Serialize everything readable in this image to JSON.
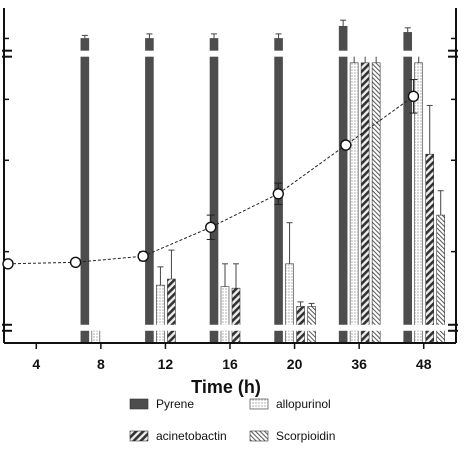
{
  "chart_data": {
    "type": "bar",
    "xlabel": "Time (h)",
    "ylabel": "",
    "title": "",
    "categories": [
      "4",
      "8",
      "12",
      "16",
      "20",
      "36",
      "48"
    ],
    "series": [
      {
        "name": "Pyrene",
        "values": [
          null,
          10.0,
          10.0,
          10.0,
          10.0,
          10.4,
          10.2
        ],
        "errors": [
          null,
          0.1,
          0.15,
          0.15,
          0.15,
          0.2,
          0.15
        ],
        "color": "#555555",
        "pattern": "solid"
      },
      {
        "name": "allopurinol",
        "values": [
          null,
          0.5,
          1.9,
          1.85,
          2.6,
          9.2,
          9.2
        ],
        "errors": [
          null,
          0,
          0.6,
          0.75,
          1.35,
          0.3,
          0.3
        ],
        "color": "#ffffff",
        "pattern": "dots"
      },
      {
        "name": "acinetobactin",
        "values": [
          null,
          null,
          2.1,
          1.8,
          1.2,
          9.2,
          6.2
        ],
        "errors": [
          null,
          null,
          0.95,
          0.8,
          0.15,
          0.3,
          1.6
        ],
        "color": "#777777",
        "pattern": "wide-diagonal"
      },
      {
        "name": "Scorpioidin",
        "values": [
          null,
          null,
          null,
          null,
          1.2,
          9.2,
          4.2
        ],
        "errors": [
          null,
          null,
          null,
          null,
          0.1,
          0.3,
          0.8
        ],
        "color": "#ffffff",
        "pattern": "fine-diagonal"
      }
    ],
    "line_series": {
      "name": "",
      "values": [
        2.6,
        2.65,
        2.85,
        3.8,
        4.9,
        6.5,
        8.1
      ],
      "errors": [
        0,
        0,
        0.15,
        0.4,
        0.35,
        0,
        0.55
      ]
    },
    "ylim": [
      0,
      11
    ],
    "y_breaks": [
      0.5,
      9.5
    ],
    "grid": false,
    "legend_position": "bottom"
  },
  "legend": {
    "items": [
      "Pyrene",
      "allopurinol",
      "acinetobactin",
      "Scorpioidin"
    ]
  }
}
